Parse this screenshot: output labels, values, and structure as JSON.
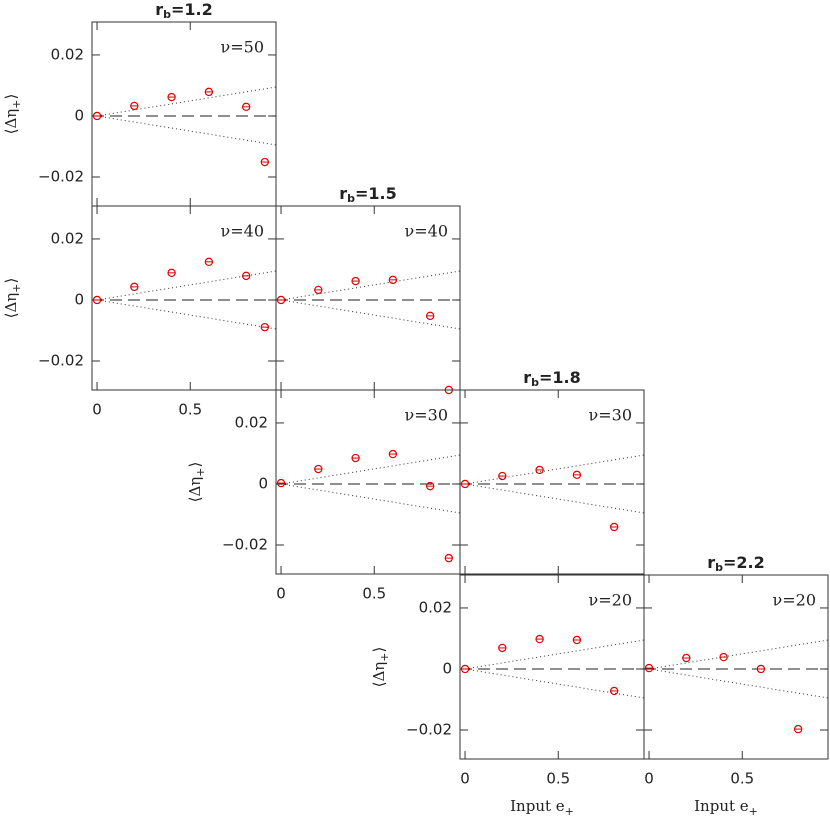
{
  "chart_data": [
    {
      "type": "scatter",
      "title": {
        "base": "r",
        "sub": "b",
        "rest": "=1.2"
      },
      "annotation": "ν=50",
      "ylabel": {
        "base": "⟨Δη",
        "sub": "+",
        "rest": "⟩"
      },
      "x": [
        0,
        0.2,
        0.4,
        0.6,
        0.8,
        0.9
      ],
      "values": [
        0,
        0.0033,
        0.0062,
        0.0079,
        0.003,
        -0.0151
      ],
      "color": "#e00000",
      "xlim": [
        -0.027,
        0.96
      ],
      "ylim": [
        -0.0295,
        0.0308
      ],
      "xticks": [
        0,
        0.5
      ],
      "yticks": [
        {
          "value": -0.02,
          "label": "−0.02"
        },
        0,
        0.02
      ],
      "xtick_labels": false,
      "ytick_labels": true,
      "hline": 0,
      "envelope": {
        "x": [
          0,
          0.96
        ],
        "upper": [
          0,
          0.0095
        ],
        "lower": [
          0,
          -0.0095
        ]
      }
    },
    {
      "type": "scatter",
      "annotation": "ν=40",
      "ylabel": {
        "base": "⟨Δη",
        "sub": "+",
        "rest": "⟩"
      },
      "x": [
        0,
        0.2,
        0.4,
        0.6,
        0.8,
        0.9
      ],
      "values": [
        0,
        0.0043,
        0.0089,
        0.0125,
        0.0079,
        -0.0089
      ],
      "color": "#e00000",
      "xlim": [
        -0.027,
        0.96
      ],
      "ylim": [
        -0.0295,
        0.0308
      ],
      "xticks": [
        0,
        0.5
      ],
      "yticks": [
        {
          "value": -0.02,
          "label": "−0.02"
        },
        0,
        0.02
      ],
      "xtick_labels": true,
      "ytick_labels": true,
      "hline": 0,
      "envelope": {
        "x": [
          0,
          0.96
        ],
        "upper": [
          0,
          0.0095
        ],
        "lower": [
          0,
          -0.0095
        ]
      }
    },
    {
      "type": "scatter",
      "title": {
        "base": "r",
        "sub": "b",
        "rest": "=1.5"
      },
      "annotation": "ν=40",
      "x": [
        0,
        0.2,
        0.4,
        0.6,
        0.8,
        0.9
      ],
      "values": [
        0,
        0.0033,
        0.0062,
        0.0066,
        -0.0052,
        -0.0295
      ],
      "color": "#e00000",
      "xlim": [
        -0.027,
        0.96
      ],
      "ylim": [
        -0.0295,
        0.0308
      ],
      "xticks": [
        0,
        0.5
      ],
      "yticks": [
        {
          "value": -0.02,
          "label": "−0.02"
        },
        0,
        0.02
      ],
      "xtick_labels": false,
      "ytick_labels": false,
      "hline": 0,
      "envelope": {
        "x": [
          0,
          0.96
        ],
        "upper": [
          0,
          0.0095
        ],
        "lower": [
          0,
          -0.0095
        ]
      }
    },
    {
      "type": "scatter",
      "annotation": "ν=30",
      "ylabel": {
        "base": "⟨Δη",
        "sub": "+",
        "rest": "⟩"
      },
      "x": [
        0,
        0.2,
        0.4,
        0.6,
        0.8,
        0.9
      ],
      "values": [
        0.0003,
        0.0049,
        0.0085,
        0.0098,
        -0.0007,
        -0.0243
      ],
      "color": "#e00000",
      "xlim": [
        -0.027,
        0.96
      ],
      "ylim": [
        -0.0295,
        0.0308
      ],
      "xticks": [
        0,
        0.5
      ],
      "yticks": [
        {
          "value": -0.02,
          "label": "−0.02"
        },
        0,
        0.02
      ],
      "xtick_labels": true,
      "ytick_labels": true,
      "hline": 0,
      "envelope": {
        "x": [
          0,
          0.96
        ],
        "upper": [
          0,
          0.0095
        ],
        "lower": [
          0,
          -0.0095
        ]
      }
    },
    {
      "type": "scatter",
      "title": {
        "base": "r",
        "sub": "b",
        "rest": "=1.8"
      },
      "annotation": "ν=30",
      "x": [
        0,
        0.2,
        0.4,
        0.6,
        0.8
      ],
      "values": [
        0,
        0.0026,
        0.0046,
        0.003,
        -0.0141
      ],
      "color": "#e00000",
      "xlim": [
        -0.027,
        0.96
      ],
      "ylim": [
        -0.0295,
        0.0308
      ],
      "xticks": [
        0,
        0.5
      ],
      "yticks": [
        {
          "value": -0.02,
          "label": "−0.02"
        },
        0,
        0.02
      ],
      "xtick_labels": false,
      "ytick_labels": false,
      "hline": 0,
      "envelope": {
        "x": [
          0,
          0.96
        ],
        "upper": [
          0,
          0.0095
        ],
        "lower": [
          0,
          -0.0095
        ]
      }
    },
    {
      "type": "scatter",
      "annotation": "ν=20",
      "ylabel": {
        "base": "⟨Δη",
        "sub": "+",
        "rest": "⟩"
      },
      "xlabel": {
        "base": "Input e",
        "sub": "+"
      },
      "x": [
        0,
        0.2,
        0.4,
        0.6,
        0.8
      ],
      "values": [
        0,
        0.0069,
        0.0098,
        0.0095,
        -0.0072
      ],
      "color": "#e00000",
      "xlim": [
        -0.027,
        0.96
      ],
      "ylim": [
        -0.0295,
        0.0308
      ],
      "xticks": [
        0,
        0.5
      ],
      "yticks": [
        {
          "value": -0.02,
          "label": "−0.02"
        },
        0,
        0.02
      ],
      "xtick_labels": true,
      "ytick_labels": true,
      "hline": 0,
      "envelope": {
        "x": [
          0,
          0.96
        ],
        "upper": [
          0,
          0.0095
        ],
        "lower": [
          0,
          -0.0095
        ]
      }
    },
    {
      "type": "scatter",
      "title": {
        "base": "r",
        "sub": "b",
        "rest": "=2.2"
      },
      "annotation": "ν=20",
      "xlabel": {
        "base": "Input e",
        "sub": "+"
      },
      "x": [
        0,
        0.2,
        0.4,
        0.6,
        0.8
      ],
      "values": [
        0.0003,
        0.0036,
        0.0039,
        0,
        -0.0197
      ],
      "color": "#e00000",
      "xlim": [
        -0.027,
        0.96
      ],
      "ylim": [
        -0.0295,
        0.0308
      ],
      "xticks": [
        0,
        0.5
      ],
      "yticks": [
        {
          "value": -0.02,
          "label": "−0.02"
        },
        0,
        0.02
      ],
      "xtick_labels": true,
      "ytick_labels": false,
      "hline": 0,
      "envelope": {
        "x": [
          0,
          0.96
        ],
        "upper": [
          0,
          0.0095
        ],
        "lower": [
          0,
          -0.0095
        ]
      }
    }
  ]
}
